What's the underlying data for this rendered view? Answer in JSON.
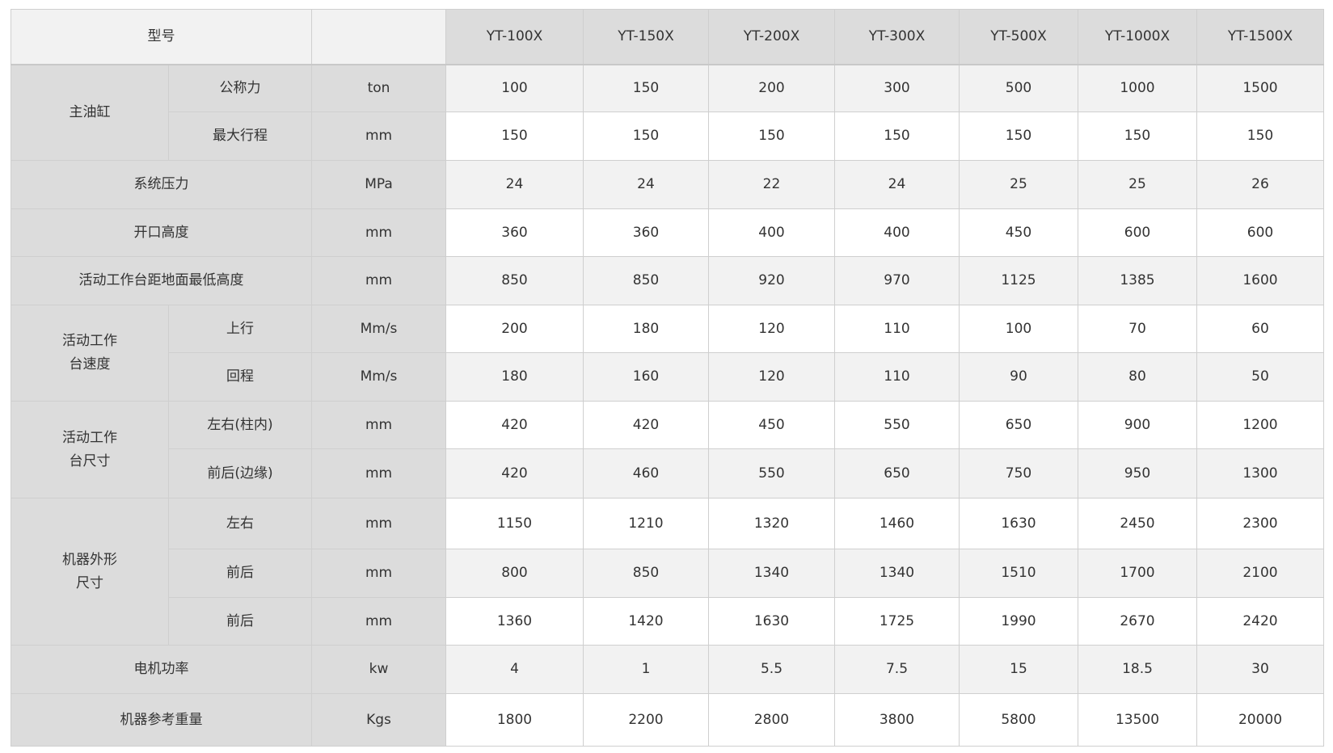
{
  "header": {
    "model_label": "型号",
    "unit_label": "",
    "models": [
      "YT-100X",
      "YT-150X",
      "YT-200X",
      "YT-300X",
      "YT-500X",
      "YT-1000X",
      "YT-1500X"
    ]
  },
  "groups": [
    {
      "label": "主油缸",
      "rows": [
        {
          "sub": "公称力",
          "unit": "ton",
          "values": [
            "100",
            "150",
            "200",
            "300",
            "500",
            "1000",
            "1500"
          ]
        },
        {
          "sub": "最大行程",
          "unit": "mm",
          "values": [
            "150",
            "150",
            "150",
            "150",
            "150",
            "150",
            "150"
          ]
        }
      ]
    },
    {
      "label": "系统压力",
      "rows": [
        {
          "unit": "MPa",
          "values": [
            "24",
            "24",
            "22",
            "24",
            "25",
            "25",
            "26"
          ]
        }
      ]
    },
    {
      "label": "开口高度",
      "rows": [
        {
          "unit": "mm",
          "values": [
            "360",
            "360",
            "400",
            "400",
            "450",
            "600",
            "600"
          ]
        }
      ]
    },
    {
      "label": "活动工作台距地面最低高度",
      "rows": [
        {
          "unit": "mm",
          "values": [
            "850",
            "850",
            "920",
            "970",
            "1125",
            "1385",
            "1600"
          ]
        }
      ]
    },
    {
      "label": "活动工作\n台速度",
      "rows": [
        {
          "sub": "上行",
          "unit": "Mm/s",
          "values": [
            "200",
            "180",
            "120",
            "110",
            "100",
            "70",
            "60"
          ]
        },
        {
          "sub": "回程",
          "unit": "Mm/s",
          "values": [
            "180",
            "160",
            "120",
            "110",
            "90",
            "80",
            "50"
          ]
        }
      ]
    },
    {
      "label": "活动工作\n台尺寸",
      "rows": [
        {
          "sub": "左右(柱内)",
          "unit": "mm",
          "values": [
            "420",
            "420",
            "450",
            "550",
            "650",
            "900",
            "1200"
          ]
        },
        {
          "sub": "前后(边缘)",
          "unit": "mm",
          "values": [
            "420",
            "460",
            "550",
            "650",
            "750",
            "950",
            "1300"
          ]
        }
      ]
    },
    {
      "label": "机器外形\n尺寸",
      "rows": [
        {
          "sub": "左右",
          "unit": "mm",
          "values": [
            "1150",
            "1210",
            "1320",
            "1460",
            "1630",
            "2450",
            "2300"
          ]
        },
        {
          "sub": "前后",
          "unit": "mm",
          "values": [
            "800",
            "850",
            "1340",
            "1340",
            "1510",
            "1700",
            "2100"
          ]
        },
        {
          "sub": "前后",
          "unit": "mm",
          "values": [
            "1360",
            "1420",
            "1630",
            "1725",
            "1990",
            "2670",
            "2420"
          ]
        }
      ]
    },
    {
      "label": "电机功率",
      "rows": [
        {
          "unit": "kw",
          "values": [
            "4",
            "1",
            "5.5",
            "7.5",
            "15",
            "18.5",
            "30"
          ]
        }
      ]
    },
    {
      "label": "机器参考重量",
      "rows": [
        {
          "unit": "Kgs",
          "values": [
            "1800",
            "2200",
            "2800",
            "3800",
            "5800",
            "13500",
            "20000"
          ]
        }
      ]
    }
  ]
}
